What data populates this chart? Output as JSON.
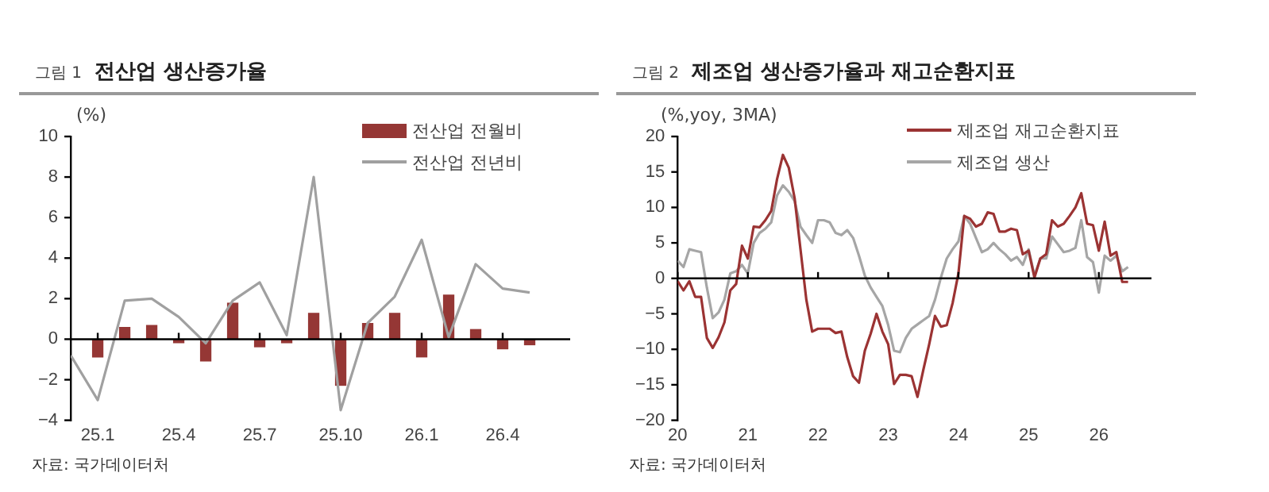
{
  "chart_data": [
    {
      "type": "bar",
      "subtitle": "그림 1",
      "title": "전산업 생산증가율",
      "ylabel": "(%)",
      "categories": [
        null,
        "25.1",
        null,
        null,
        "25.4",
        null,
        null,
        "25.7",
        null,
        null,
        "25.10",
        null,
        null,
        "26.1",
        null,
        null,
        "26.4",
        null
      ],
      "series": [
        {
          "name": "전산업 전월비",
          "type": "bar",
          "color": "#953735",
          "values": [
            null,
            -0.9,
            0.6,
            0.7,
            -0.2,
            -1.1,
            1.8,
            -0.4,
            -0.2,
            1.3,
            -2.3,
            0.8,
            1.3,
            -0.9,
            2.2,
            0.5,
            -0.5,
            -0.3
          ]
        },
        {
          "name": "전산업 전년비",
          "type": "line",
          "color": "#a0a0a0",
          "values": [
            -0.8,
            -3.0,
            1.9,
            2.0,
            1.1,
            -0.2,
            1.9,
            2.8,
            0.2,
            8.0,
            -3.5,
            0.8,
            2.1,
            4.9,
            0.1,
            3.7,
            2.5,
            2.3
          ]
        }
      ],
      "ylim": [
        -4,
        10
      ],
      "yticks": [
        -4,
        -2,
        0,
        2,
        4,
        6,
        8,
        10
      ],
      "legend": "top right",
      "marker": "none",
      "annotations": [
        "자료: 국가데이터처"
      ]
    },
    {
      "type": "line",
      "subtitle": "그림 2",
      "title": "제조업 생산증가율과 재고순환지표",
      "ylabel": "(%,yoy, 3MA)",
      "x": [
        "2020-01",
        "2020-02",
        "2020-03",
        "2020-04",
        "2020-05",
        "2020-06",
        "2020-07",
        "2020-08",
        "2020-09",
        "2020-10",
        "2020-11",
        "2020-12",
        "2021-01",
        "2021-02",
        "2021-03",
        "2021-04",
        "2021-05",
        "2021-06",
        "2021-07",
        "2021-08",
        "2021-09",
        "2021-10",
        "2021-11",
        "2021-12",
        "2022-01",
        "2022-02",
        "2022-03",
        "2022-04",
        "2022-05",
        "2022-06",
        "2022-07",
        "2022-08",
        "2022-09",
        "2022-10",
        "2022-11",
        "2022-12",
        "2023-01",
        "2023-02",
        "2023-03",
        "2023-04",
        "2023-05",
        "2023-06",
        "2023-07",
        "2023-08",
        "2023-09",
        "2023-10",
        "2023-11",
        "2023-12",
        "2024-01",
        "2024-02",
        "2024-03",
        "2024-04",
        "2024-05",
        "2024-06",
        "2024-07",
        "2024-08",
        "2024-09",
        "2024-10",
        "2024-11",
        "2024-12",
        "2025-01",
        "2025-02",
        "2025-03",
        "2025-04",
        "2025-05",
        "2025-06",
        "2025-07",
        "2025-08",
        "2025-09",
        "2025-10",
        "2025-11",
        "2025-12",
        "2026-01",
        "2026-02",
        "2026-03",
        "2026-04",
        "2026-05",
        "2026-06"
      ],
      "series": [
        {
          "name": "제조업 재고순환지표",
          "color": "#9b3333",
          "values": [
            -0.4,
            -1.7,
            -0.4,
            -2.6,
            -2.6,
            -8.4,
            -9.8,
            -8.3,
            -6.2,
            -1.7,
            -0.8,
            4.6,
            2.8,
            7.3,
            7.2,
            8.2,
            9.5,
            14.0,
            17.4,
            15.6,
            11.3,
            4.1,
            -3.0,
            -7.5,
            -7.1,
            -7.1,
            -7.1,
            -7.7,
            -7.5,
            -11.1,
            -13.8,
            -14.7,
            -10.2,
            -7.8,
            -5.0,
            -7.5,
            -9.3,
            -14.9,
            -13.6,
            -13.6,
            -13.8,
            -16.7,
            -12.9,
            -9.3,
            -5.3,
            -6.8,
            -6.6,
            -3.5,
            0.7,
            8.8,
            8.4,
            7.3,
            7.7,
            9.3,
            9.1,
            6.6,
            6.6,
            7.0,
            6.8,
            3.4,
            3.9,
            0.1,
            2.8,
            3.4,
            8.2,
            7.3,
            7.7,
            8.8,
            10.0,
            12.0,
            7.7,
            7.5,
            3.9,
            8.0,
            3.2,
            3.7,
            -0.5,
            -0.5
          ]
        },
        {
          "name": "제조업 생산",
          "color": "#a6a6a6",
          "values": [
            2.5,
            1.6,
            4.1,
            3.9,
            3.7,
            -1.3,
            -5.6,
            -4.8,
            -3.0,
            0.7,
            1.0,
            1.9,
            0.7,
            5.0,
            6.4,
            7.0,
            7.9,
            11.7,
            13.1,
            12.2,
            10.9,
            7.3,
            6.1,
            5.0,
            8.2,
            8.2,
            7.9,
            6.4,
            6.1,
            6.8,
            5.7,
            3.2,
            0.4,
            -1.3,
            -2.6,
            -3.9,
            -6.6,
            -10.2,
            -10.4,
            -8.4,
            -7.1,
            -6.5,
            -5.9,
            -5.3,
            -3.0,
            0.1,
            2.8,
            4.1,
            5.2,
            8.8,
            7.7,
            5.7,
            3.7,
            4.1,
            5.0,
            4.1,
            3.4,
            2.5,
            3.0,
            1.9,
            4.1,
            0.4,
            2.8,
            2.8,
            5.9,
            4.8,
            3.7,
            3.9,
            4.3,
            8.2,
            3.0,
            2.3,
            -2.0,
            3.2,
            2.5,
            3.2,
            1.0,
            1.6
          ]
        }
      ],
      "xlim": [
        "2020-01",
        "2026-10"
      ],
      "xticks": [
        {
          "value": "2020-01",
          "label": "20"
        },
        {
          "value": "2021-01",
          "label": "21"
        },
        {
          "value": "2022-01",
          "label": "22"
        },
        {
          "value": "2023-01",
          "label": "23"
        },
        {
          "value": "2024-01",
          "label": "24"
        },
        {
          "value": "2025-01",
          "label": "25"
        },
        {
          "value": "2026-01",
          "label": "26"
        }
      ],
      "ylim": [
        -20,
        20
      ],
      "yticks": [
        -20,
        -15,
        -10,
        -5,
        0,
        5,
        10,
        15,
        20
      ],
      "legend": "top right",
      "marker": "none",
      "annotations": [
        "자료: 국가데이터처"
      ]
    }
  ]
}
